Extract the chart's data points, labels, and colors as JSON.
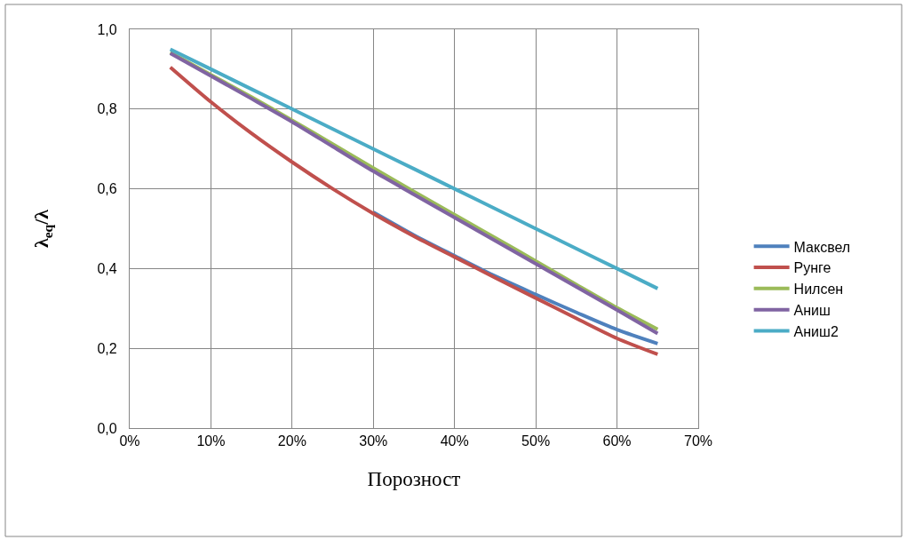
{
  "chart_data": {
    "type": "line",
    "xlabel": "Порозност",
    "ylabel": "λ$_{eq}$/λ",
    "x": [
      5,
      10,
      15,
      20,
      25,
      30,
      35,
      40,
      45,
      50,
      55,
      60,
      65
    ],
    "xlim": [
      0,
      70
    ],
    "xticks": [
      {
        "value": 0,
        "label": "0%"
      },
      {
        "value": 10,
        "label": "10%"
      },
      {
        "value": 20,
        "label": "20%"
      },
      {
        "value": 30,
        "label": "30%"
      },
      {
        "value": 40,
        "label": "40%"
      },
      {
        "value": 50,
        "label": "50%"
      },
      {
        "value": 60,
        "label": "60%"
      },
      {
        "value": 70,
        "label": "70%"
      }
    ],
    "ylim": [
      0,
      1
    ],
    "yticks": [
      {
        "value": 0,
        "label": "0,0"
      },
      {
        "value": 0.2,
        "label": "0,2"
      },
      {
        "value": 0.4,
        "label": "0,4"
      },
      {
        "value": 0.6,
        "label": "0,6"
      },
      {
        "value": 0.8,
        "label": "0,8"
      },
      {
        "value": 1,
        "label": "1,0"
      }
    ],
    "grid": true,
    "legend": "right",
    "series": [
      {
        "name": "Максвел",
        "color": "#4f81bd",
        "values": [
          null,
          null,
          null,
          null,
          null,
          0.541,
          0.484,
          0.432,
          0.381,
          0.335,
          0.29,
          0.247,
          0.212
        ]
      },
      {
        "name": "Рунге",
        "color": "#c0504d",
        "values": [
          0.905,
          0.818,
          0.739,
          0.667,
          0.6,
          0.538,
          0.481,
          0.429,
          0.377,
          0.326,
          0.275,
          0.225,
          0.185
        ]
      },
      {
        "name": "Нилсен",
        "color": "#9bbb59",
        "values": [
          0.942,
          0.886,
          0.83,
          0.772,
          0.712,
          0.652,
          0.593,
          0.535,
          0.477,
          0.419,
          0.36,
          0.302,
          0.248
        ]
      },
      {
        "name": "Аниш",
        "color": "#8064a2",
        "values": [
          0.94,
          0.883,
          0.826,
          0.768,
          0.706,
          0.644,
          0.586,
          0.528,
          0.47,
          0.412,
          0.354,
          0.296,
          0.237
        ]
      },
      {
        "name": "Аниш2",
        "color": "#4bacc6",
        "values": [
          0.95,
          0.9,
          0.85,
          0.8,
          0.75,
          0.7,
          0.65,
          0.6,
          0.55,
          0.5,
          0.45,
          0.4,
          0.35
        ]
      }
    ]
  }
}
